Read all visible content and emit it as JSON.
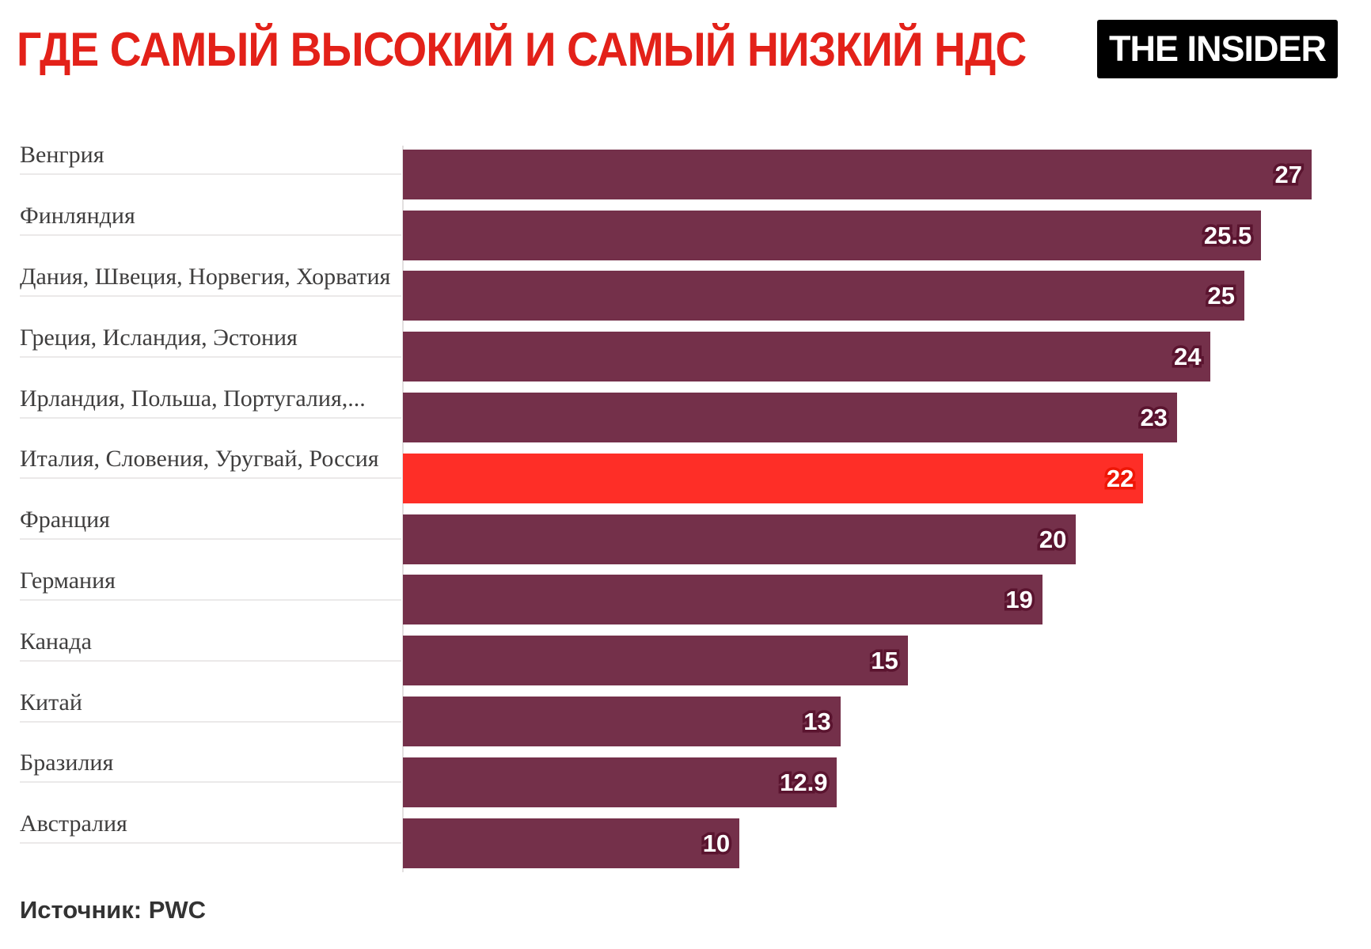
{
  "header": {
    "logo_text": "THE INSIDER"
  },
  "footer": {
    "source": "Источник: PWC"
  },
  "colors": {
    "title": "#e32119",
    "bar": "#74304a",
    "bar_outline": "#5a142f",
    "highlight_bar": "#fe2e27",
    "highlight_outline": "#ee1606",
    "category_text": "#3f3e3e",
    "underline": "#ebe9e9",
    "logo_bg": "#000000",
    "logo_text": "#ffffff",
    "source_text": "#333333"
  },
  "chart_data": {
    "type": "bar",
    "orientation": "horizontal",
    "title": "ГДЕ САМЫЙ ВЫСОКИЙ И САМЫЙ НИЗКИЙ НДС",
    "xlabel": "",
    "ylabel": "",
    "xlim": [
      0,
      27
    ],
    "grid": false,
    "value_labels_shown": true,
    "highlight_index": 5,
    "categories": [
      "Венгрия",
      "Финляндия",
      "Дания, Швеция, Норвегия, Хорватия",
      "Греция, Исландия, Эстония",
      "Ирландия, Польша, Португалия,...",
      "Италия, Словения, Уругвай, Россия",
      "Франция",
      "Германия",
      "Канада",
      "Китай",
      "Бразилия",
      "Австралия"
    ],
    "values": [
      27,
      25.5,
      25,
      24,
      23,
      22,
      20,
      19,
      15,
      13,
      12.9,
      10
    ],
    "value_labels": [
      "27",
      "25.5",
      "25",
      "24",
      "23",
      "22",
      "20",
      "19",
      "15",
      "13",
      "12.9",
      "10"
    ]
  }
}
